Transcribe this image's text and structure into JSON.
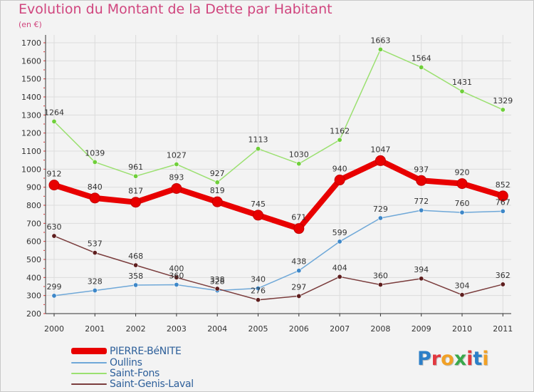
{
  "page": {
    "title": "Evolution du Montant de la Dette par Habitant",
    "unit": "(en €)",
    "brand": "Proxiti",
    "colors": {
      "title": "#d0457e",
      "background": "#f3f3f3",
      "grid": "#dddddd"
    }
  },
  "chart_data": {
    "type": "line",
    "title": "Evolution du Montant de la Dette par Habitant",
    "subtitle": "(en €)",
    "xlabel": "",
    "ylabel": "",
    "x": [
      "2000",
      "2001",
      "2002",
      "2003",
      "2004",
      "2005",
      "2006",
      "2007",
      "2008",
      "2009",
      "2010",
      "2011"
    ],
    "ylim": [
      200,
      1700
    ],
    "yticks": [
      "200",
      "300",
      "400",
      "500",
      "600",
      "700",
      "800",
      "900",
      "1000",
      "1100",
      "1200",
      "1300",
      "1400",
      "1500",
      "1600",
      "1700"
    ],
    "grid": true,
    "legend_position": "bottom-left",
    "series": [
      {
        "name": "PIERRE-BéNITE",
        "color": "#e80000",
        "emphasis": true,
        "values": [
          912,
          840,
          817,
          893,
          819,
          745,
          671,
          940,
          1047,
          937,
          920,
          852
        ],
        "labels": [
          "912",
          "840",
          "817",
          "893",
          "819",
          "745",
          "671",
          "940",
          "1047",
          "937",
          "920",
          "852"
        ]
      },
      {
        "name": "Oullins",
        "color": "#6fa8d8",
        "point_color": "#3d87c8",
        "values": [
          299,
          328,
          358,
          360,
          328,
          340,
          438,
          599,
          729,
          772,
          760,
          767
        ],
        "labels": [
          "299",
          "328",
          "358",
          "360",
          "328",
          "340",
          "438",
          "599",
          "729",
          "772",
          "760",
          "767"
        ]
      },
      {
        "name": "Saint-Fons",
        "color": "#9be070",
        "point_color": "#6fcf3a",
        "values": [
          1264,
          1039,
          961,
          1027,
          927,
          1113,
          1030,
          1162,
          1663,
          1564,
          1431,
          1329
        ],
        "labels": [
          "1264",
          "1039",
          "961",
          "1027",
          "927",
          "1113",
          "1030",
          "1162",
          "1663",
          "1564",
          "1431",
          "1329"
        ]
      },
      {
        "name": "Saint-Genis-Laval",
        "color": "#7a3c3c",
        "point_color": "#5e1e1e",
        "values": [
          630,
          537,
          468,
          400,
          338,
          276,
          297,
          404,
          360,
          394,
          304,
          362
        ],
        "labels": [
          "630",
          "537",
          "468",
          "400",
          "338",
          "276",
          "297",
          "404",
          "360",
          "394",
          "304",
          "362"
        ]
      }
    ]
  }
}
